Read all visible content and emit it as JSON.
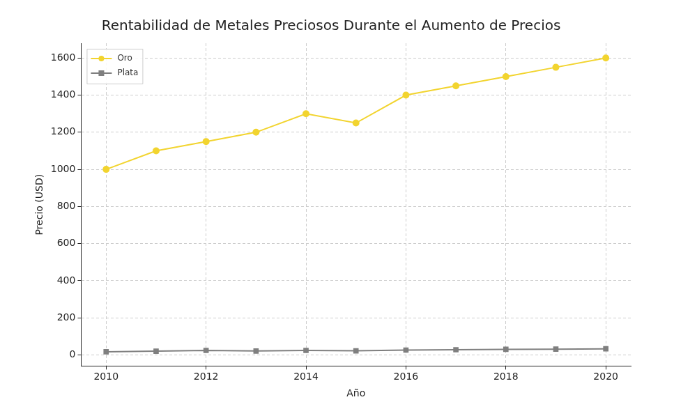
{
  "chart_data": {
    "type": "line",
    "title": "Rentabilidad de Metales Preciosos Durante el Aumento de Precios",
    "x_label": "Año",
    "y_label": "Precio (USD)",
    "x": [
      2010,
      2011,
      2012,
      2013,
      2014,
      2015,
      2016,
      2017,
      2018,
      2019,
      2020
    ],
    "series": [
      {
        "name": "Oro",
        "color": "#f2d42f",
        "marker": "circle",
        "line_style": "solid",
        "values": [
          1000,
          1100,
          1150,
          1200,
          1300,
          1250,
          1400,
          1450,
          1500,
          1550,
          1600
        ]
      },
      {
        "name": "Plata",
        "color": "#7f7f7f",
        "marker": "square",
        "line_style": "solid",
        "values": [
          17,
          20,
          24,
          21,
          24,
          22,
          26,
          28,
          30,
          31,
          33
        ]
      }
    ],
    "xlim": [
      2009.5,
      2020.5
    ],
    "xticks": [
      2010,
      2012,
      2014,
      2016,
      2018,
      2020
    ],
    "ylim": [
      -60,
      1680
    ],
    "yticks": [
      0,
      200,
      400,
      600,
      800,
      1000,
      1200,
      1400,
      1600
    ],
    "grid": true,
    "legend": "upper left"
  }
}
